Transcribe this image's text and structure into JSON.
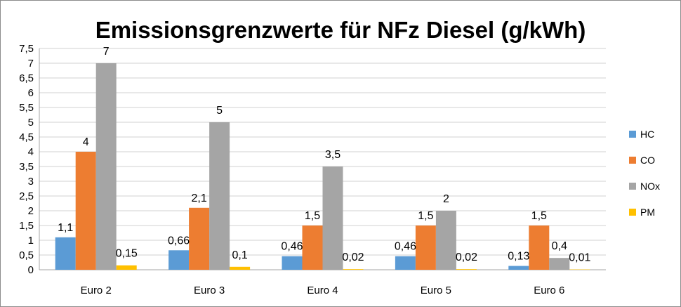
{
  "chart_data": {
    "type": "bar",
    "title": "Emissionsgrenzwerte für NFz Diesel (g/kWh)",
    "categories": [
      "Euro 2",
      "Euro 3",
      "Euro 4",
      "Euro 5",
      "Euro 6"
    ],
    "series": [
      {
        "name": "HC",
        "color": "#5b9bd5",
        "values": [
          1.1,
          0.66,
          0.46,
          0.46,
          0.13
        ],
        "labels": [
          "1,1",
          "0,66",
          "0,46",
          "0,46",
          "0,13"
        ]
      },
      {
        "name": "CO",
        "color": "#ed7d31",
        "values": [
          4,
          2.1,
          1.5,
          1.5,
          1.5
        ],
        "labels": [
          "4",
          "2,1",
          "1,5",
          "1,5",
          "1,5"
        ]
      },
      {
        "name": "NOx",
        "color": "#a5a5a5",
        "values": [
          7,
          5,
          3.5,
          2,
          0.4
        ],
        "labels": [
          "7",
          "5",
          "3,5",
          "2",
          "0,4"
        ]
      },
      {
        "name": "PM",
        "color": "#ffc000",
        "values": [
          0.15,
          0.1,
          0.02,
          0.02,
          0.01
        ],
        "labels": [
          "0,15",
          "0,1",
          "0,02",
          "0,02",
          "0,01"
        ]
      }
    ],
    "ylim": [
      0,
      7.5
    ],
    "yticks": [
      "0",
      "0,5",
      "1",
      "1,5",
      "2",
      "2,5",
      "3",
      "3,5",
      "4",
      "4,5",
      "5",
      "5,5",
      "6",
      "6,5",
      "7",
      "7,5"
    ],
    "grid": true,
    "legend": "right"
  }
}
